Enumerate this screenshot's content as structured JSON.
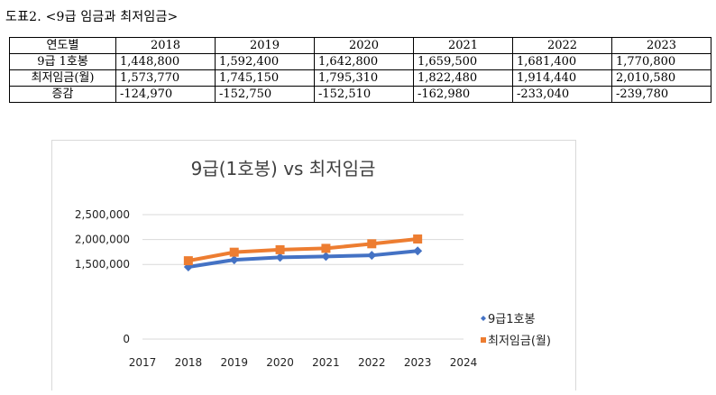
{
  "caption": "도표2. <9급 임금과 최저임금>",
  "table": {
    "header": [
      "연도별",
      "2018",
      "2019",
      "2020",
      "2021",
      "2022",
      "2023"
    ],
    "rows": [
      [
        "9급 1호봉",
        "1,448,800",
        "1,592,400",
        "1,642,800",
        "1,659,500",
        "1,681,400",
        "1,770,800"
      ],
      [
        "최저임금(월)",
        "1,573,770",
        "1,745,150",
        "1,795,310",
        "1,822,480",
        "1,914,440",
        "2,010,580"
      ],
      [
        "증감",
        "-124,970",
        "-152,750",
        "-152,510",
        "-162,980",
        "-233,040",
        "-239,780"
      ]
    ]
  },
  "chart_data": {
    "type": "line",
    "title": "9급(1호봉) vs 최저임금",
    "xlabel": "",
    "ylabel": "",
    "xlim": [
      2017,
      2024
    ],
    "ylim": [
      0,
      2500000
    ],
    "x_ticks": [
      "2017",
      "2018",
      "2019",
      "2020",
      "2021",
      "2022",
      "2023",
      "2024"
    ],
    "y_ticks": [
      "0",
      "1,500,000",
      "2,000,000",
      "2,500,000"
    ],
    "x": [
      2018,
      2019,
      2020,
      2021,
      2022,
      2023
    ],
    "series": [
      {
        "name": "9급1호봉",
        "color": "#4472C4",
        "marker": "diamond",
        "values": [
          1448800,
          1592400,
          1642800,
          1659500,
          1681400,
          1770800
        ]
      },
      {
        "name": "최저임금(월)",
        "color": "#ED7D31",
        "marker": "square",
        "values": [
          1573770,
          1745150,
          1795310,
          1822480,
          1914440,
          2010580
        ]
      }
    ],
    "grid": true,
    "legend_position": "right"
  }
}
